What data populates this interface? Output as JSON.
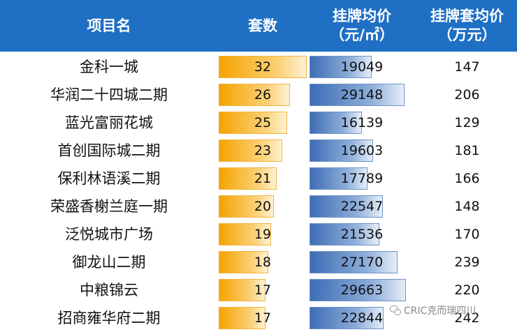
{
  "header": {
    "name": "项目名",
    "count": "套数",
    "price_line1": "挂牌均价",
    "price_line2": "（元/㎡）",
    "total_line1": "挂牌套均价",
    "total_line2": "（万元）"
  },
  "colors": {
    "header_bg": "#1f6fc5",
    "count_bar": "#f5a300",
    "price_bar": "#3d6db5"
  },
  "watermark": "CRIC克而瑞四川",
  "chart_data": {
    "type": "table",
    "columns": [
      "项目名",
      "套数",
      "挂牌均价（元/㎡）",
      "挂牌套均价（万元）"
    ],
    "rows": [
      {
        "name": "金科一城",
        "count": 32,
        "price": 19049,
        "total": 147
      },
      {
        "name": "华润二十四城二期",
        "count": 26,
        "price": 29148,
        "total": 206
      },
      {
        "name": "蓝光富丽花城",
        "count": 25,
        "price": 16139,
        "total": 129
      },
      {
        "name": "首创国际城二期",
        "count": 23,
        "price": 19603,
        "total": 181
      },
      {
        "name": "保利林语溪二期",
        "count": 21,
        "price": 17789,
        "total": 166
      },
      {
        "name": "荣盛香榭兰庭一期",
        "count": 20,
        "price": 22547,
        "total": 148
      },
      {
        "name": "泛悦城市广场",
        "count": 19,
        "price": 21536,
        "total": 170
      },
      {
        "name": "御龙山二期",
        "count": 18,
        "price": 27170,
        "total": 239
      },
      {
        "name": "中粮锦云",
        "count": 17,
        "price": 29663,
        "total": 220
      },
      {
        "name": "招商雍华府二期",
        "count": 17,
        "price": 22844,
        "total": 242
      }
    ]
  }
}
